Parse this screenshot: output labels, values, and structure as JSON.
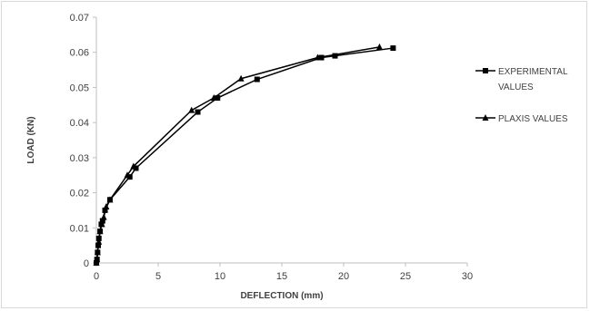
{
  "chart_data": {
    "type": "line",
    "title": "",
    "xlabel": "DEFLECTION (mm)",
    "ylabel": "LOAD (KN)",
    "xlim": [
      0,
      30
    ],
    "ylim": [
      0,
      0.07
    ],
    "xticks": [
      0,
      5,
      10,
      15,
      20,
      25,
      30
    ],
    "xtick_labels": [
      "0",
      "5",
      "10",
      "15",
      "20",
      "25",
      "30"
    ],
    "yticks": [
      0,
      0.01,
      0.02,
      0.03,
      0.04,
      0.05,
      0.06,
      0.07
    ],
    "ytick_labels": [
      "0",
      "0.01",
      "0.02",
      "0.03",
      "0.04",
      "0.05",
      "0.06",
      "0.07"
    ],
    "grid": false,
    "legend_position": "right",
    "line_color": "#000000",
    "series": [
      {
        "name": "EXPERIMENTAL VALUES",
        "marker": "square",
        "x": [
          0,
          0.05,
          0.1,
          0.15,
          0.2,
          0.3,
          0.4,
          0.5,
          0.7,
          1.1,
          2.7,
          3.2,
          8.2,
          9.8,
          13,
          18.2,
          19.3,
          24
        ],
        "y": [
          0,
          0.001,
          0.003,
          0.005,
          0.007,
          0.009,
          0.011,
          0.012,
          0.015,
          0.018,
          0.0245,
          0.027,
          0.043,
          0.047,
          0.0523,
          0.0585,
          0.059,
          0.0612
        ]
      },
      {
        "name": "PLAXIS VALUES",
        "marker": "triangle",
        "x": [
          0,
          0.05,
          0.1,
          0.2,
          0.3,
          0.45,
          0.6,
          0.8,
          1.1,
          2.5,
          3.0,
          7.7,
          9.5,
          11.7,
          17.9,
          22.9
        ],
        "y": [
          0,
          0.001,
          0.003,
          0.006,
          0.009,
          0.011,
          0.013,
          0.016,
          0.018,
          0.025,
          0.0275,
          0.0435,
          0.047,
          0.0525,
          0.0585,
          0.0615
        ]
      }
    ]
  }
}
